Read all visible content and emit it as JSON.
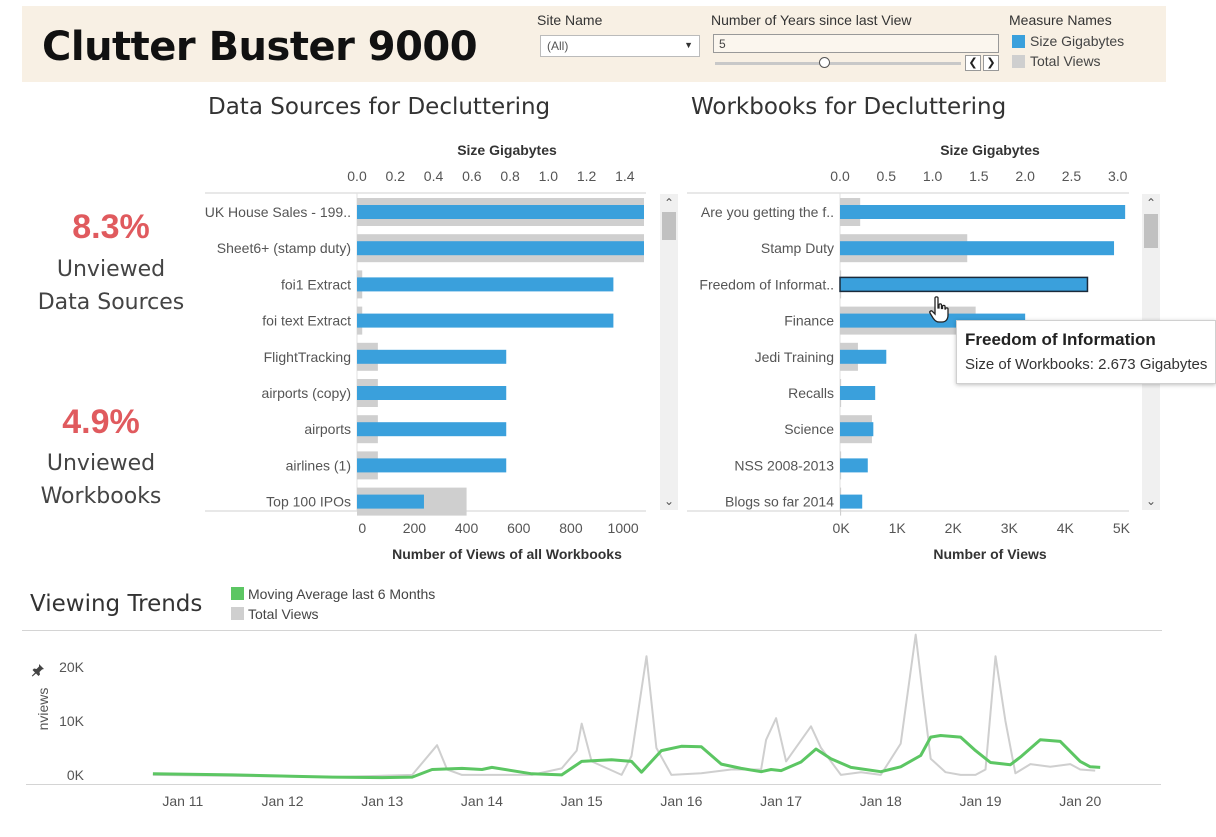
{
  "header": {
    "title": "Clutter Buster 9000",
    "site_label": "Site Name",
    "site_value": "(All)",
    "years_label": "Number of Years since last View",
    "years_value": "5",
    "measure_label": "Measure Names",
    "measures": [
      {
        "name": "Size Gigabytes",
        "color": "#3aa0dc"
      },
      {
        "name": "Total Views",
        "color": "#cfcfcf"
      }
    ]
  },
  "kpis": [
    {
      "value": "8.3%",
      "line1": "Unviewed",
      "line2": "Data Sources"
    },
    {
      "value": "4.9%",
      "line1": "Unviewed",
      "line2": "Workbooks"
    }
  ],
  "colors": {
    "size": "#3aa0dc",
    "views": "#cfcfcf",
    "kpi": "#e05a5e",
    "moving_avg": "#5cc663",
    "total": "#cfcfcf"
  },
  "chart_data": [
    {
      "type": "bar",
      "title": "Data Sources for Decluttering",
      "top_axis_title": "Size Gigabytes",
      "bottom_axis_title": "Number of Views of all Workbooks",
      "top_ticks": [
        "0.0",
        "0.2",
        "0.4",
        "0.6",
        "0.8",
        "1.0",
        "1.2",
        "1.4"
      ],
      "top_tick_values": [
        0.0,
        0.2,
        0.4,
        0.6,
        0.8,
        1.0,
        1.2,
        1.4
      ],
      "top_range": [
        0,
        1.5
      ],
      "bottom_ticks": [
        "0",
        "200",
        "400",
        "600",
        "800",
        "1000"
      ],
      "bottom_tick_values": [
        0,
        200,
        400,
        600,
        800,
        1000
      ],
      "bottom_range": [
        -20,
        1080
      ],
      "categories": [
        "UK House Sales - 199..",
        "Sheet6+ (stamp duty)",
        "foi1 Extract",
        "foi text Extract",
        "FlightTracking",
        "airports (copy)",
        "airports",
        "airlines (1)",
        "Top 100 IPOs"
      ],
      "series": [
        {
          "name": "Size Gigabytes",
          "values": [
            1.5,
            1.5,
            1.34,
            1.34,
            0.78,
            0.78,
            0.78,
            0.78,
            0.35
          ]
        },
        {
          "name": "Total Views",
          "values": [
            1080,
            1080,
            0,
            0,
            60,
            60,
            60,
            60,
            400
          ]
        }
      ]
    },
    {
      "type": "bar",
      "title": "Workbooks for Decluttering",
      "top_axis_title": "Size Gigabytes",
      "bottom_axis_title": "Number of Views",
      "top_ticks": [
        "0.0",
        "0.5",
        "1.0",
        "1.5",
        "2.0",
        "2.5",
        "3.0"
      ],
      "top_tick_values": [
        0.0,
        0.5,
        1.0,
        1.5,
        2.0,
        2.5,
        3.0
      ],
      "top_range": [
        0,
        3.1
      ],
      "bottom_ticks": [
        "0K",
        "1K",
        "2K",
        "3K",
        "4K",
        "5K"
      ],
      "bottom_tick_values": [
        0,
        1000,
        2000,
        3000,
        4000,
        5000
      ],
      "bottom_range": [
        -20,
        5100
      ],
      "categories": [
        "Are you getting the f..",
        "Stamp Duty",
        "Freedom of Informat..",
        "Finance",
        "Jedi Training",
        "Recalls",
        "Science",
        "NSS 2008-2013",
        "Blogs so far 2014"
      ],
      "selected_index": 2,
      "series": [
        {
          "name": "Size Gigabytes",
          "values": [
            3.08,
            2.96,
            2.673,
            2.0,
            0.5,
            0.38,
            0.36,
            0.3,
            0.24
          ]
        },
        {
          "name": "Total Views",
          "values": [
            340,
            2250,
            0,
            2400,
            300,
            0,
            550,
            0,
            0
          ]
        }
      ]
    },
    {
      "type": "line",
      "title": "Viewing Trends",
      "ylabel": "nviews",
      "y_ticks": [
        "20K",
        "10K",
        "0K"
      ],
      "y_tick_values": [
        20000,
        10000,
        0
      ],
      "ylim": [
        -1500,
        25000
      ],
      "x_ticks": [
        "Jan 11",
        "Jan 12",
        "Jan 13",
        "Jan 14",
        "Jan 15",
        "Jan 16",
        "Jan 17",
        "Jan 18",
        "Jan 19",
        "Jan 20"
      ],
      "x_tick_values": [
        2011,
        2012,
        2013,
        2014,
        2015,
        2016,
        2017,
        2018,
        2019,
        2020
      ],
      "xlim": [
        2010.35,
        2020.8
      ],
      "series": [
        {
          "name": "Moving Average last 6 Months",
          "x": [
            2010.7,
            2011.5,
            2012.2,
            2012.5,
            2013.0,
            2013.3,
            2013.5,
            2013.8,
            2014.0,
            2014.1,
            2014.5,
            2014.8,
            2015.0,
            2015.2,
            2015.3,
            2015.5,
            2015.6,
            2015.8,
            2016.0,
            2016.2,
            2016.4,
            2016.6,
            2016.8,
            2016.9,
            2017.0,
            2017.2,
            2017.35,
            2017.5,
            2017.7,
            2018.0,
            2018.2,
            2018.4,
            2018.5,
            2018.6,
            2018.8,
            2018.95,
            2019.1,
            2019.3,
            2019.4,
            2019.6,
            2019.8,
            2020.0,
            2020.1,
            2020.2
          ],
          "values": [
            200,
            0,
            -300,
            -400,
            -500,
            -400,
            1000,
            1200,
            1000,
            1400,
            200,
            0,
            2500,
            2700,
            2800,
            2500,
            500,
            4500,
            5300,
            5200,
            2000,
            1200,
            600,
            1000,
            800,
            2400,
            4800,
            3000,
            1400,
            600,
            1500,
            3600,
            7000,
            7300,
            7000,
            4500,
            2300,
            1900,
            3300,
            6500,
            6200,
            2500,
            1500,
            1400
          ]
        },
        {
          "name": "Total Views",
          "x": [
            2010.7,
            2012.5,
            2013.3,
            2013.55,
            2013.65,
            2013.8,
            2014.5,
            2014.8,
            2014.95,
            2015.0,
            2015.1,
            2015.4,
            2015.5,
            2015.65,
            2015.75,
            2015.9,
            2016.2,
            2016.5,
            2016.8,
            2016.85,
            2016.95,
            2017.05,
            2017.3,
            2017.4,
            2017.6,
            2017.8,
            2018.0,
            2018.2,
            2018.35,
            2018.42,
            2018.5,
            2018.65,
            2018.8,
            2018.95,
            2019.05,
            2019.15,
            2019.25,
            2019.35,
            2019.5,
            2019.7,
            2019.9,
            2020.0,
            2020.15
          ],
          "values": [
            0,
            -400,
            0,
            5500,
            1000,
            0,
            0,
            1200,
            4500,
            9500,
            2500,
            0,
            3500,
            22000,
            5000,
            0,
            300,
            1000,
            1000,
            6500,
            10500,
            2500,
            9000,
            5000,
            0,
            500,
            0,
            5800,
            26000,
            15000,
            3000,
            500,
            0,
            0,
            1000,
            22000,
            10000,
            300,
            2000,
            1500,
            2000,
            1000,
            800
          ]
        }
      ]
    }
  ],
  "tooltip": {
    "title": "Freedom of Information",
    "body": "Size of Workbooks: 2.673 Gigabytes"
  },
  "trends_legend": [
    {
      "name": "Moving Average last 6 Months",
      "color": "#5cc663"
    },
    {
      "name": "Total Views",
      "color": "#cfcfcf"
    }
  ]
}
